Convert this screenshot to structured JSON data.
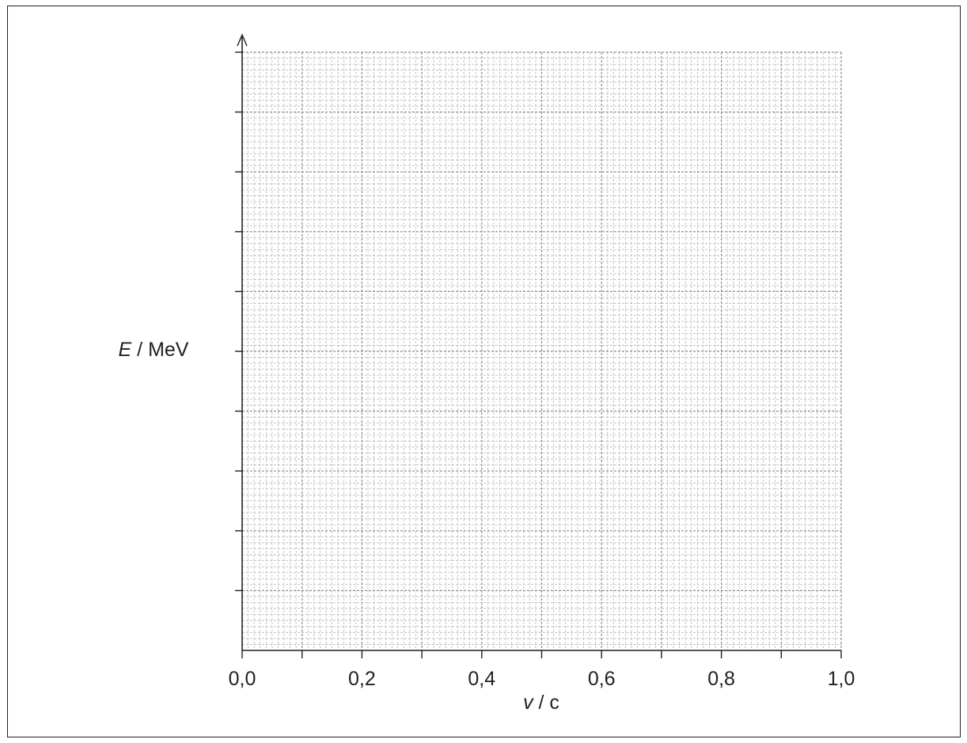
{
  "chart_data": {
    "type": "line",
    "title": "",
    "xlabel": {
      "variable": "v",
      "unit": "c"
    },
    "ylabel": {
      "variable": "E",
      "unit": "MeV"
    },
    "xlim": [
      0.0,
      1.0
    ],
    "x_ticks": [
      "0,0",
      "0,2",
      "0,4",
      "0,6",
      "0,8",
      "1,0"
    ],
    "x_major_tick_step": 0.1,
    "y_major_tick_count": 10,
    "y_ticks": [],
    "grid": true,
    "grid_style": "dashed graph paper",
    "series": []
  }
}
